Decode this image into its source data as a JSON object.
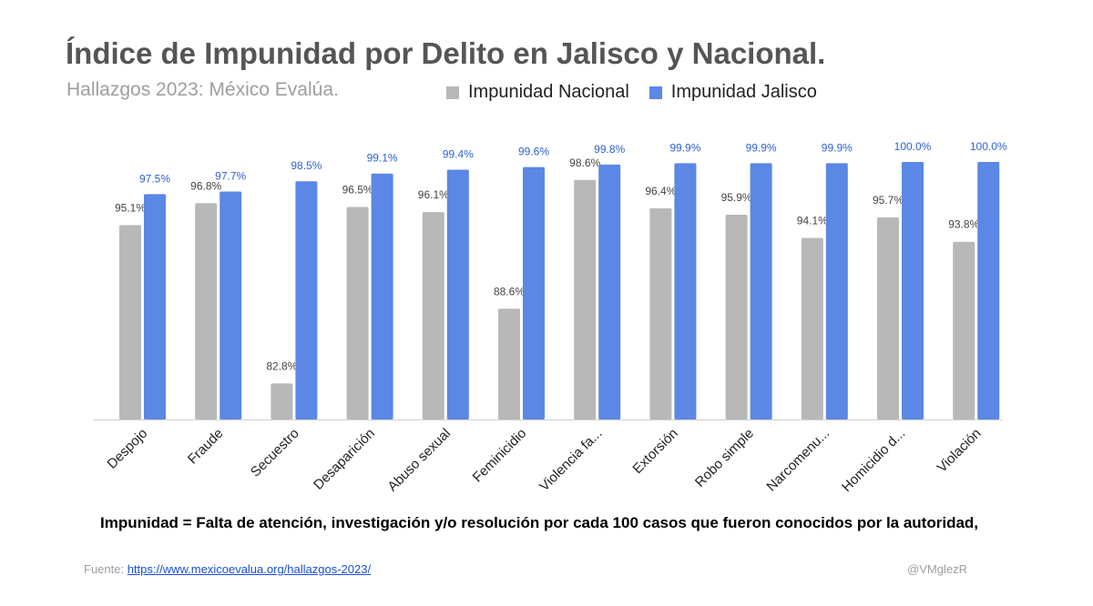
{
  "header": {
    "title": "Índice de Impunidad por Delito en Jalisco y Nacional.",
    "subtitle": "Hallazgos 2023: México Evalúa."
  },
  "footer": {
    "note": "Impunidad = Falta de atención, investigación y/o resolución por cada 100 casos que fueron conocidos por la autoridad,",
    "source_label": "Fuente: ",
    "source_link": "https://www.mexicoevalua.org/hallazgos-2023/",
    "handle": "@VMglezR"
  },
  "chart_data": {
    "type": "bar",
    "title": "Índice de Impunidad por Delito en Jalisco y Nacional.",
    "subtitle": "Hallazgos 2023: México Evalúa.",
    "xlabel": "",
    "ylabel": "",
    "ylim": [
      80,
      100
    ],
    "grid": false,
    "legend_position": "top",
    "categories": [
      "Despojo",
      "Fraude",
      "Secuestro",
      "Desaparición",
      "Abuso sexual",
      "Feminicidio",
      "Violencia fa...",
      "Extorsión",
      "Robo simple",
      "Narcomenu...",
      "Homicidio d...",
      "Violación"
    ],
    "series": [
      {
        "name": "Impunidad Nacional",
        "color": "#b8b8b8",
        "label_color": "#444444",
        "values": [
          95.1,
          96.8,
          82.8,
          96.5,
          96.1,
          88.6,
          98.6,
          96.4,
          95.9,
          94.1,
          95.7,
          93.8
        ],
        "labels": [
          "95.1%",
          "96.8%",
          "82.8%",
          "96.5%",
          "96.1%",
          "88.6%",
          "98.6%",
          "96.4%",
          "95.9%",
          "94.1%",
          "95.7%",
          "93.8%"
        ]
      },
      {
        "name": "Impunidad Jalisco",
        "color": "#5b87e5",
        "label_color": "#2f62d0",
        "values": [
          97.5,
          97.7,
          98.5,
          99.1,
          99.4,
          99.6,
          99.8,
          99.9,
          99.9,
          99.9,
          100.0,
          100.0
        ],
        "labels": [
          "97.5%",
          "97.7%",
          "98.5%",
          "99.1%",
          "99.4%",
          "99.6%",
          "99.8%",
          "99.9%",
          "99.9%",
          "99.9%",
          "100.0%",
          "100.0%"
        ]
      }
    ]
  }
}
